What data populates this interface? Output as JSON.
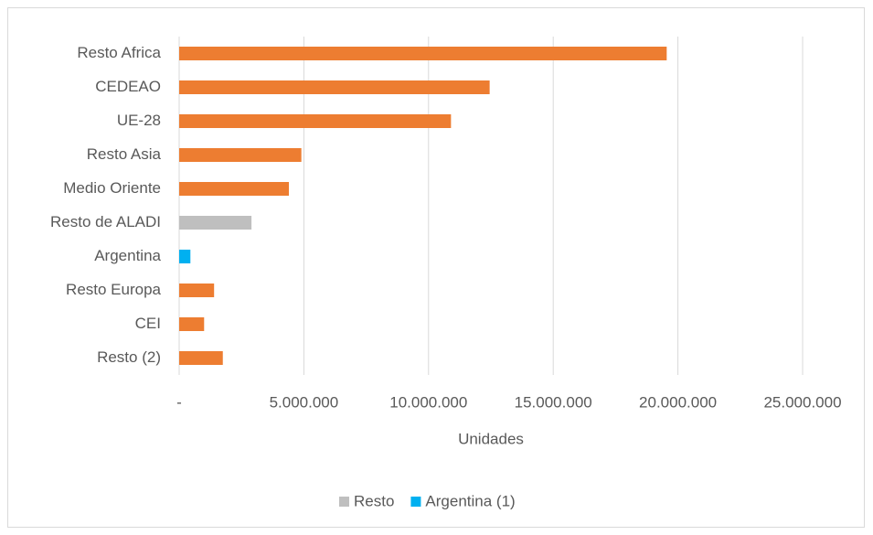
{
  "chart_data": {
    "type": "hbar",
    "categories": [
      "Resto Africa",
      "CEDEAO",
      "UE-28",
      "Resto Asia",
      "Medio Oriente",
      "Resto de ALADI",
      "Argentina",
      "Resto Europa",
      "CEI",
      "Resto (2)"
    ],
    "values": [
      19550000,
      12450000,
      10900000,
      4900000,
      4400000,
      2900000,
      450000,
      1400000,
      1000000,
      1750000
    ],
    "colors": [
      "#ed7d31",
      "#ed7d31",
      "#ed7d31",
      "#ed7d31",
      "#ed7d31",
      "#bfbfbf",
      "#00b0f0",
      "#ed7d31",
      "#ed7d31",
      "#ed7d31"
    ],
    "xlim": [
      0,
      25000000
    ],
    "xticks": [
      {
        "value": 0,
        "label": "-"
      },
      {
        "value": 5000000,
        "label": "5.000.000"
      },
      {
        "value": 10000000,
        "label": "10.000.000"
      },
      {
        "value": 15000000,
        "label": "15.000.000"
      },
      {
        "value": 20000000,
        "label": "20.000.000"
      },
      {
        "value": 25000000,
        "label": "25.000.000"
      }
    ],
    "xlabel": "Unidades",
    "grid": true,
    "legend_position": "bottom",
    "legend": [
      {
        "name": "Resto",
        "color": "#bfbfbf"
      },
      {
        "name": "Argentina (1)",
        "color": "#00b0f0"
      }
    ]
  }
}
